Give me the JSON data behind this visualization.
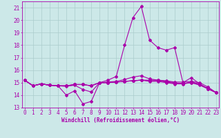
{
  "xlabel": "Windchill (Refroidissement éolien,°C)",
  "x_ticks": [
    0,
    1,
    2,
    3,
    4,
    5,
    6,
    7,
    8,
    9,
    10,
    11,
    12,
    13,
    14,
    15,
    16,
    17,
    18,
    19,
    20,
    21,
    22,
    23
  ],
  "ylim": [
    13,
    21.5
  ],
  "yticks": [
    13,
    14,
    15,
    16,
    17,
    18,
    19,
    20,
    21
  ],
  "xlim": [
    -0.3,
    23.3
  ],
  "line_color": "#aa00aa",
  "bg_color": "#cce8e8",
  "grid_color": "#aacccc",
  "lines": [
    [
      15.2,
      14.75,
      14.9,
      14.8,
      14.75,
      14.0,
      14.35,
      13.3,
      13.5,
      15.0,
      15.2,
      15.5,
      18.0,
      20.2,
      21.1,
      18.4,
      17.8,
      17.6,
      17.8,
      15.0,
      15.4,
      14.9,
      14.5,
      14.2
    ],
    [
      15.2,
      14.75,
      14.9,
      14.8,
      14.75,
      14.75,
      14.85,
      14.85,
      14.75,
      15.0,
      15.0,
      15.05,
      15.1,
      15.15,
      15.2,
      15.2,
      15.2,
      15.15,
      15.05,
      15.05,
      15.1,
      15.0,
      14.65,
      14.2
    ],
    [
      15.2,
      14.75,
      14.9,
      14.8,
      14.75,
      14.75,
      14.85,
      14.85,
      14.75,
      15.0,
      15.0,
      15.05,
      15.1,
      15.15,
      15.2,
      15.15,
      15.15,
      15.05,
      14.95,
      14.95,
      15.0,
      14.85,
      14.55,
      14.2
    ],
    [
      15.2,
      14.75,
      14.9,
      14.8,
      14.75,
      14.75,
      14.85,
      14.85,
      14.75,
      15.0,
      15.0,
      15.05,
      15.1,
      15.15,
      15.2,
      15.1,
      15.1,
      15.0,
      14.9,
      14.9,
      15.0,
      14.8,
      14.5,
      14.2
    ],
    [
      15.2,
      14.75,
      14.9,
      14.8,
      14.75,
      14.7,
      14.8,
      14.45,
      14.25,
      15.0,
      15.05,
      15.1,
      15.25,
      15.45,
      15.55,
      15.3,
      15.2,
      15.1,
      15.0,
      14.9,
      15.05,
      14.9,
      14.5,
      14.2
    ]
  ],
  "marker": "D",
  "markersize": 2.0,
  "linewidth": 0.8,
  "xlabel_fontsize": 5.5,
  "tick_fontsize": 5.5
}
